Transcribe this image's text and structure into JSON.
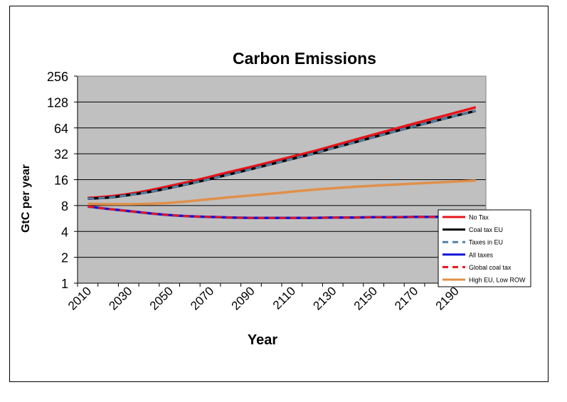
{
  "chart_data": {
    "type": "line",
    "title": "Carbon Emissions",
    "xlabel": "Year",
    "ylabel": "GtC per year",
    "yscale": "log2",
    "ylim": [
      1,
      256
    ],
    "yticks": [
      "1",
      "2",
      "4",
      "8",
      "16",
      "32",
      "64",
      "128",
      "256"
    ],
    "ytick_values": [
      1,
      2,
      4,
      8,
      16,
      32,
      64,
      128,
      256
    ],
    "xlim": [
      2005,
      2205
    ],
    "xticks": [
      "2010",
      "2030",
      "2050",
      "2070",
      "2090",
      "2110",
      "2130",
      "2150",
      "2170",
      "2190"
    ],
    "xtick_values": [
      2010,
      2030,
      2050,
      2070,
      2090,
      2110,
      2130,
      2150,
      2170,
      2190
    ],
    "grid": "horizontal",
    "plot_background": "#c0c0c0",
    "legend_position": "right",
    "x": [
      2010,
      2020,
      2030,
      2040,
      2050,
      2060,
      2070,
      2080,
      2090,
      2100,
      2110,
      2120,
      2130,
      2140,
      2150,
      2160,
      2170,
      2180,
      2190,
      2200
    ],
    "series": [
      {
        "name": "No Tax",
        "color": "#e8141c",
        "dash": "solid",
        "values": [
          9.8,
          10.2,
          10.9,
          12.0,
          13.5,
          15.2,
          17.3,
          19.8,
          22.5,
          25.8,
          29.6,
          34.0,
          39.5,
          46,
          53.5,
          62,
          72,
          83,
          96,
          111
        ]
      },
      {
        "name": "Coal tax EU",
        "color": "#000000",
        "dash": "solid",
        "values": [
          9.6,
          9.9,
          10.6,
          11.5,
          12.8,
          14.4,
          16.3,
          18.6,
          21.2,
          24.3,
          27.9,
          32.0,
          37.2,
          43,
          50,
          58,
          67,
          77,
          88.5,
          101
        ]
      },
      {
        "name": "Taxes in EU",
        "color": "#4f81a8",
        "dash": "dashed",
        "values": [
          9.6,
          9.9,
          10.6,
          11.5,
          12.8,
          14.4,
          16.3,
          18.6,
          21.2,
          24.3,
          27.9,
          32.0,
          37.2,
          43,
          50,
          58,
          67,
          77,
          88.5,
          101
        ]
      },
      {
        "name": "All taxes",
        "color": "#1414d8",
        "dash": "solid",
        "values": [
          7.8,
          7.3,
          6.9,
          6.5,
          6.2,
          6.0,
          5.9,
          5.8,
          5.75,
          5.75,
          5.75,
          5.75,
          5.8,
          5.8,
          5.85,
          5.85,
          5.9,
          5.9,
          6.0,
          6.0
        ]
      },
      {
        "name": "Global coal tax",
        "color": "#e8141c",
        "dash": "dashed",
        "values": [
          7.8,
          7.3,
          6.9,
          6.5,
          6.2,
          6.0,
          5.9,
          5.8,
          5.75,
          5.75,
          5.75,
          5.75,
          5.8,
          5.8,
          5.85,
          5.85,
          5.9,
          5.9,
          6.0,
          6.0
        ]
      },
      {
        "name": "High EU, Low ROW",
        "color": "#e0904a",
        "dash": "solid",
        "values": [
          8.4,
          8.3,
          8.3,
          8.4,
          8.6,
          9.0,
          9.5,
          10.0,
          10.5,
          11.0,
          11.6,
          12.2,
          12.7,
          13.2,
          13.6,
          14.0,
          14.4,
          14.8,
          15.2,
          15.6
        ]
      }
    ]
  }
}
